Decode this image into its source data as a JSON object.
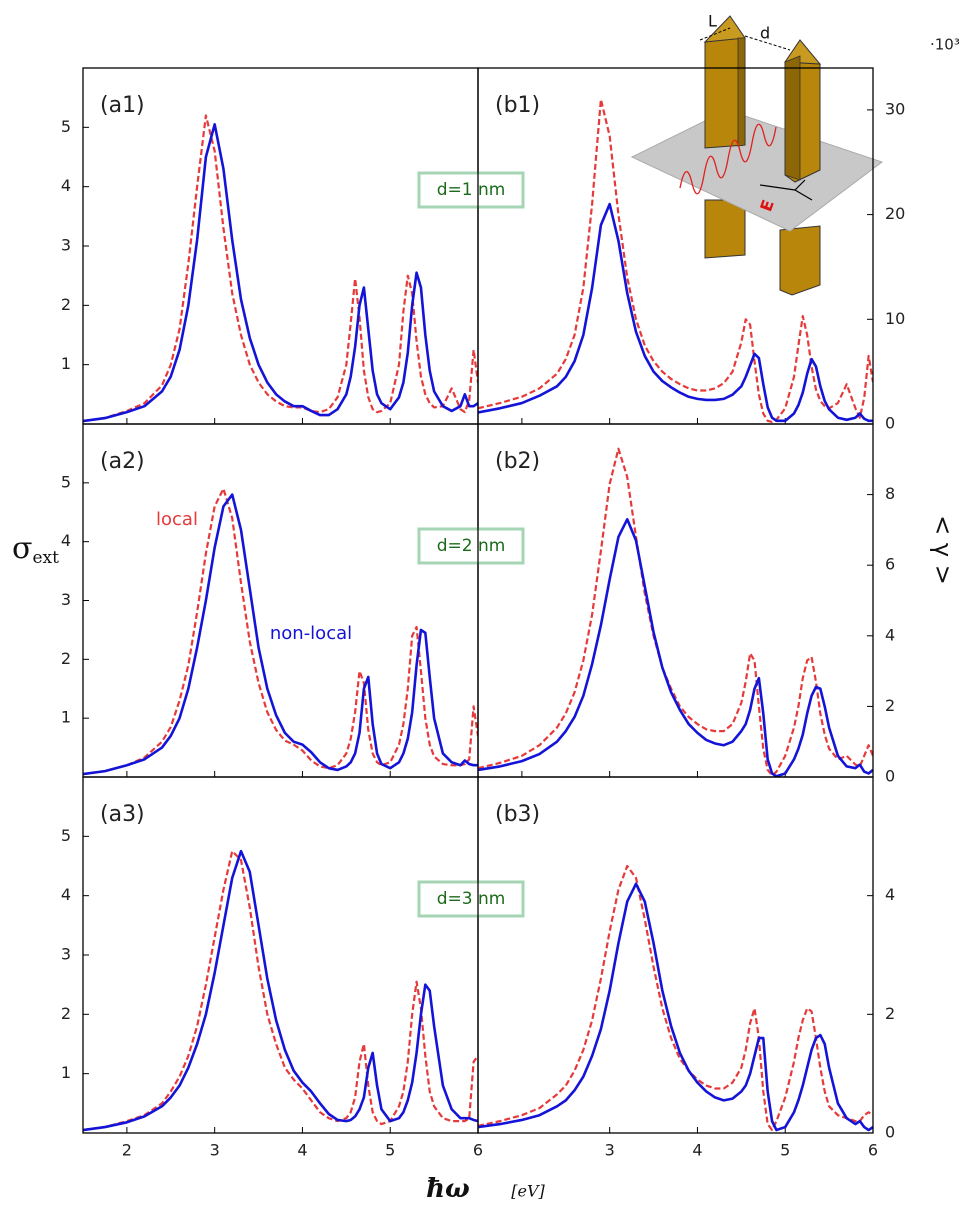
{
  "figure": {
    "xlabel": "ħω",
    "xunit": "[eV]",
    "ylabel": {
      "symbol": "σ",
      "subscript": "ext"
    },
    "y2label": "< γ >",
    "y2_multiplier": "·10³"
  },
  "inset": {
    "labels": [
      "L",
      "d",
      "E"
    ]
  },
  "chart_data": [
    {
      "type": "line",
      "panel_label": "(a1)",
      "annotation": "d=1 nm",
      "x": [
        1.5,
        1.75,
        2,
        2.2,
        2.4,
        2.5,
        2.6,
        2.7,
        2.8,
        2.9,
        3.0,
        3.1,
        3.2,
        3.3,
        3.4,
        3.5,
        3.6,
        3.7,
        3.8,
        3.9,
        4.0,
        4.1,
        4.2,
        4.3,
        4.4,
        4.5,
        4.55,
        4.6,
        4.65,
        4.7,
        4.75,
        4.8,
        4.85,
        4.9,
        5.0,
        5.1,
        5.15,
        5.2,
        5.25,
        5.3,
        5.35,
        5.4,
        5.45,
        5.5,
        5.6,
        5.7,
        5.8,
        5.85,
        5.9,
        5.95,
        6.0
      ],
      "xlim": [
        1.5,
        6
      ],
      "xticks": [
        2,
        3,
        4,
        5,
        6
      ],
      "ylim": [
        0,
        6
      ],
      "yticks": [
        1,
        2,
        3,
        4,
        5
      ],
      "series": [
        {
          "color": "#e63a3a",
          "dash": true,
          "values": [
            0.05,
            0.1,
            0.22,
            0.35,
            0.65,
            1.0,
            1.6,
            2.7,
            4.0,
            5.2,
            4.6,
            3.3,
            2.2,
            1.5,
            1.0,
            0.7,
            0.5,
            0.38,
            0.3,
            0.28,
            0.28,
            0.22,
            0.2,
            0.25,
            0.45,
            1.0,
            1.7,
            2.45,
            1.8,
            0.9,
            0.45,
            0.25,
            0.2,
            0.22,
            0.35,
            1.0,
            1.9,
            2.5,
            2.2,
            1.4,
            0.8,
            0.5,
            0.35,
            0.28,
            0.3,
            0.6,
            0.25,
            0.2,
            0.4,
            1.25,
            0.7
          ]
        },
        {
          "color": "#1414d8",
          "values": [
            0.05,
            0.1,
            0.2,
            0.3,
            0.55,
            0.8,
            1.25,
            2.0,
            3.1,
            4.5,
            5.05,
            4.3,
            3.1,
            2.1,
            1.45,
            1.0,
            0.7,
            0.5,
            0.38,
            0.3,
            0.3,
            0.22,
            0.15,
            0.15,
            0.25,
            0.5,
            0.8,
            1.3,
            2.0,
            2.3,
            1.6,
            0.9,
            0.5,
            0.35,
            0.25,
            0.45,
            0.7,
            1.2,
            2.0,
            2.55,
            2.3,
            1.5,
            0.9,
            0.55,
            0.3,
            0.22,
            0.3,
            0.5,
            0.3,
            0.3,
            0.35
          ]
        }
      ]
    },
    {
      "type": "line",
      "panel_label": "(b1)",
      "x": [
        1.5,
        1.75,
        2,
        2.2,
        2.4,
        2.5,
        2.6,
        2.7,
        2.8,
        2.9,
        3.0,
        3.1,
        3.2,
        3.3,
        3.4,
        3.5,
        3.6,
        3.7,
        3.8,
        3.9,
        4.0,
        4.1,
        4.2,
        4.3,
        4.4,
        4.5,
        4.55,
        4.6,
        4.65,
        4.7,
        4.75,
        4.8,
        4.85,
        4.9,
        5.0,
        5.1,
        5.15,
        5.2,
        5.25,
        5.3,
        5.35,
        5.4,
        5.45,
        5.5,
        5.6,
        5.7,
        5.8,
        5.85,
        5.9,
        5.95,
        6.0
      ],
      "xlim": [
        1.5,
        6
      ],
      "xticks": [
        2,
        3,
        4,
        5,
        6
      ],
      "y2lim": [
        0,
        34
      ],
      "y2ticks": [
        0,
        10,
        20,
        30
      ],
      "series": [
        {
          "color": "#e63a3a",
          "dash": true,
          "axis": "y2",
          "values": [
            1.5,
            2.0,
            2.6,
            3.4,
            4.8,
            6.2,
            8.5,
            13,
            21,
            31,
            27.5,
            20,
            14,
            10,
            7.5,
            6,
            5,
            4.3,
            3.8,
            3.4,
            3.2,
            3.2,
            3.4,
            3.9,
            5,
            7.8,
            10,
            9.5,
            6,
            2.8,
            1,
            0.3,
            0.2,
            0.4,
            1.5,
            4.5,
            7.5,
            10.3,
            8.5,
            5.5,
            3.3,
            2.2,
            1.7,
            1.5,
            2.0,
            3.8,
            1.5,
            0.6,
            2.5,
            6.5,
            4
          ]
        },
        {
          "color": "#1414d8",
          "axis": "y2",
          "values": [
            1.1,
            1.5,
            2.0,
            2.7,
            3.6,
            4.5,
            6,
            8.5,
            13,
            19,
            21,
            17.5,
            12.5,
            8.8,
            6.5,
            5.0,
            4.1,
            3.5,
            3.0,
            2.6,
            2.4,
            2.3,
            2.3,
            2.4,
            2.8,
            3.6,
            4.5,
            5.6,
            6.7,
            6.3,
            3.8,
            1.6,
            0.6,
            0.3,
            0.3,
            1.0,
            1.8,
            3.0,
            4.8,
            6.2,
            5.5,
            3.6,
            2.2,
            1.4,
            0.6,
            0.4,
            0.6,
            1.0,
            0.5,
            0.3,
            0.3
          ]
        }
      ]
    },
    {
      "type": "line",
      "panel_label": "(a2)",
      "annotation": "d=2 nm",
      "x": [
        1.5,
        1.75,
        2,
        2.2,
        2.4,
        2.5,
        2.6,
        2.7,
        2.8,
        2.9,
        3.0,
        3.1,
        3.2,
        3.3,
        3.4,
        3.5,
        3.6,
        3.7,
        3.8,
        3.9,
        4.0,
        4.1,
        4.2,
        4.3,
        4.4,
        4.5,
        4.55,
        4.6,
        4.65,
        4.7,
        4.75,
        4.8,
        4.85,
        4.9,
        5.0,
        5.1,
        5.15,
        5.2,
        5.25,
        5.3,
        5.35,
        5.4,
        5.45,
        5.5,
        5.6,
        5.7,
        5.8,
        5.85,
        5.9,
        5.95,
        6.0
      ],
      "xlim": [
        1.5,
        6
      ],
      "xticks": [
        2,
        3,
        4,
        5,
        6
      ],
      "ylim": [
        0,
        6
      ],
      "yticks": [
        1,
        2,
        3,
        4,
        5
      ],
      "series": [
        {
          "name": "local",
          "color": "#e63a3a",
          "dash": true,
          "values": [
            0.05,
            0.1,
            0.2,
            0.33,
            0.6,
            0.85,
            1.3,
            1.9,
            2.8,
            3.8,
            4.6,
            4.9,
            4.4,
            3.3,
            2.3,
            1.6,
            1.1,
            0.8,
            0.62,
            0.55,
            0.45,
            0.28,
            0.18,
            0.15,
            0.2,
            0.4,
            0.65,
            1.1,
            1.8,
            1.6,
            0.8,
            0.4,
            0.25,
            0.2,
            0.25,
            0.55,
            0.9,
            1.5,
            2.4,
            2.55,
            1.8,
            1.0,
            0.55,
            0.35,
            0.22,
            0.2,
            0.2,
            0.22,
            0.3,
            1.2,
            0.7
          ]
        },
        {
          "name": "non-local",
          "color": "#1414d8",
          "values": [
            0.05,
            0.1,
            0.2,
            0.3,
            0.5,
            0.7,
            1.0,
            1.5,
            2.2,
            3.0,
            3.9,
            4.6,
            4.8,
            4.2,
            3.2,
            2.2,
            1.5,
            1.05,
            0.75,
            0.6,
            0.55,
            0.42,
            0.25,
            0.15,
            0.12,
            0.18,
            0.25,
            0.4,
            0.75,
            1.5,
            1.7,
            0.9,
            0.4,
            0.22,
            0.15,
            0.25,
            0.4,
            0.65,
            1.1,
            1.9,
            2.5,
            2.45,
            1.7,
            1.0,
            0.4,
            0.25,
            0.2,
            0.28,
            0.22,
            0.2,
            0.2
          ]
        }
      ]
    },
    {
      "type": "line",
      "panel_label": "(b2)",
      "x": [
        1.5,
        1.75,
        2,
        2.2,
        2.4,
        2.5,
        2.6,
        2.7,
        2.8,
        2.9,
        3.0,
        3.1,
        3.2,
        3.3,
        3.4,
        3.5,
        3.6,
        3.7,
        3.8,
        3.9,
        4.0,
        4.1,
        4.2,
        4.3,
        4.4,
        4.5,
        4.55,
        4.6,
        4.65,
        4.7,
        4.75,
        4.8,
        4.85,
        4.9,
        5.0,
        5.1,
        5.15,
        5.2,
        5.25,
        5.3,
        5.35,
        5.4,
        5.45,
        5.5,
        5.6,
        5.7,
        5.8,
        5.85,
        5.9,
        5.95,
        6.0
      ],
      "xlim": [
        1.5,
        6
      ],
      "xticks": [
        2,
        3,
        4,
        5,
        6
      ],
      "y2lim": [
        0,
        10
      ],
      "y2ticks": [
        0,
        2,
        4,
        6,
        8
      ],
      "series": [
        {
          "color": "#e63a3a",
          "dash": true,
          "axis": "y2",
          "values": [
            0.25,
            0.4,
            0.6,
            0.9,
            1.4,
            1.8,
            2.4,
            3.3,
            4.6,
            6.4,
            8.3,
            9.3,
            8.5,
            6.8,
            5.2,
            4.0,
            3.1,
            2.5,
            2.0,
            1.7,
            1.5,
            1.35,
            1.3,
            1.3,
            1.5,
            2.1,
            2.7,
            3.5,
            3.3,
            2.0,
            0.8,
            0.2,
            0.05,
            0.15,
            0.6,
            1.4,
            2.0,
            2.8,
            3.3,
            3.4,
            2.7,
            1.8,
            1.2,
            0.8,
            0.5,
            0.6,
            0.35,
            0.3,
            0.6,
            0.9,
            0.6
          ]
        },
        {
          "color": "#1414d8",
          "axis": "y2",
          "values": [
            0.2,
            0.3,
            0.45,
            0.65,
            1.0,
            1.3,
            1.7,
            2.3,
            3.2,
            4.3,
            5.6,
            6.8,
            7.3,
            6.7,
            5.4,
            4.1,
            3.1,
            2.4,
            1.9,
            1.5,
            1.25,
            1.05,
            0.95,
            0.9,
            1.0,
            1.3,
            1.5,
            1.9,
            2.5,
            2.8,
            1.8,
            0.5,
            0.1,
            0.02,
            0.1,
            0.5,
            0.8,
            1.2,
            1.8,
            2.3,
            2.55,
            2.5,
            2.0,
            1.4,
            0.6,
            0.3,
            0.25,
            0.35,
            0.15,
            0.1,
            0.2
          ]
        }
      ]
    },
    {
      "type": "line",
      "panel_label": "(a3)",
      "annotation": "d=3 nm",
      "x": [
        1.5,
        1.75,
        2,
        2.2,
        2.4,
        2.5,
        2.6,
        2.7,
        2.8,
        2.9,
        3.0,
        3.1,
        3.2,
        3.3,
        3.4,
        3.5,
        3.6,
        3.7,
        3.8,
        3.9,
        4.0,
        4.1,
        4.2,
        4.3,
        4.4,
        4.5,
        4.55,
        4.6,
        4.65,
        4.7,
        4.75,
        4.8,
        4.85,
        4.9,
        5.0,
        5.1,
        5.15,
        5.2,
        5.25,
        5.3,
        5.35,
        5.4,
        5.45,
        5.5,
        5.6,
        5.7,
        5.8,
        5.85,
        5.9,
        5.95,
        6.0
      ],
      "xlim": [
        1.5,
        6
      ],
      "xticks": [
        2,
        3,
        4,
        5,
        6
      ],
      "ylim": [
        0,
        6
      ],
      "yticks": [
        1,
        2,
        3,
        4,
        5
      ],
      "series": [
        {
          "color": "#e63a3a",
          "dash": true,
          "values": [
            0.05,
            0.1,
            0.2,
            0.3,
            0.5,
            0.7,
            0.95,
            1.3,
            1.8,
            2.5,
            3.3,
            4.1,
            4.75,
            4.6,
            3.8,
            2.8,
            2.0,
            1.5,
            1.1,
            0.9,
            0.75,
            0.55,
            0.35,
            0.25,
            0.2,
            0.25,
            0.35,
            0.6,
            1.2,
            1.5,
            0.8,
            0.35,
            0.2,
            0.15,
            0.2,
            0.45,
            0.7,
            1.2,
            2.0,
            2.55,
            2.1,
            1.3,
            0.7,
            0.45,
            0.25,
            0.2,
            0.2,
            0.2,
            0.25,
            1.2,
            1.3
          ]
        },
        {
          "color": "#1414d8",
          "values": [
            0.05,
            0.1,
            0.18,
            0.28,
            0.45,
            0.6,
            0.8,
            1.1,
            1.5,
            2.0,
            2.7,
            3.5,
            4.3,
            4.75,
            4.4,
            3.5,
            2.6,
            1.9,
            1.4,
            1.05,
            0.85,
            0.7,
            0.5,
            0.32,
            0.22,
            0.2,
            0.22,
            0.28,
            0.4,
            0.6,
            1.1,
            1.35,
            0.8,
            0.4,
            0.2,
            0.25,
            0.35,
            0.55,
            0.85,
            1.35,
            2.0,
            2.5,
            2.4,
            1.8,
            0.8,
            0.4,
            0.25,
            0.25,
            0.25,
            0.22,
            0.2
          ]
        }
      ]
    },
    {
      "type": "line",
      "panel_label": "(b3)",
      "x": [
        1.5,
        1.75,
        2,
        2.2,
        2.4,
        2.5,
        2.6,
        2.7,
        2.8,
        2.9,
        3.0,
        3.1,
        3.2,
        3.3,
        3.4,
        3.5,
        3.6,
        3.7,
        3.8,
        3.9,
        4.0,
        4.1,
        4.2,
        4.3,
        4.4,
        4.5,
        4.55,
        4.6,
        4.65,
        4.7,
        4.75,
        4.8,
        4.85,
        4.9,
        5.0,
        5.1,
        5.15,
        5.2,
        5.25,
        5.3,
        5.35,
        5.4,
        5.45,
        5.5,
        5.6,
        5.7,
        5.8,
        5.85,
        5.9,
        5.95,
        6.0
      ],
      "xlim": [
        1.5,
        6
      ],
      "xticks": [
        3,
        4,
        5,
        6
      ],
      "y2lim": [
        0,
        6
      ],
      "y2ticks": [
        0,
        2,
        4
      ],
      "series": [
        {
          "color": "#e63a3a",
          "dash": true,
          "axis": "y2",
          "values": [
            0.12,
            0.2,
            0.3,
            0.42,
            0.65,
            0.8,
            1.05,
            1.4,
            1.9,
            2.6,
            3.4,
            4.1,
            4.5,
            4.3,
            3.6,
            2.8,
            2.1,
            1.6,
            1.25,
            1.05,
            0.9,
            0.8,
            0.75,
            0.75,
            0.85,
            1.1,
            1.4,
            1.85,
            2.1,
            1.6,
            0.7,
            0.15,
            0.05,
            0.2,
            0.6,
            1.2,
            1.6,
            1.9,
            2.1,
            2.05,
            1.6,
            1.1,
            0.7,
            0.45,
            0.3,
            0.25,
            0.2,
            0.2,
            0.3,
            0.35,
            0.3
          ]
        },
        {
          "color": "#1414d8",
          "axis": "y2",
          "values": [
            0.1,
            0.15,
            0.22,
            0.3,
            0.45,
            0.55,
            0.72,
            0.95,
            1.3,
            1.75,
            2.4,
            3.2,
            3.9,
            4.2,
            3.9,
            3.2,
            2.4,
            1.8,
            1.35,
            1.05,
            0.85,
            0.7,
            0.6,
            0.55,
            0.58,
            0.7,
            0.8,
            1.0,
            1.3,
            1.6,
            1.6,
            0.7,
            0.2,
            0.05,
            0.1,
            0.35,
            0.55,
            0.8,
            1.1,
            1.4,
            1.6,
            1.65,
            1.5,
            1.1,
            0.5,
            0.25,
            0.15,
            0.2,
            0.1,
            0.05,
            0.1
          ]
        }
      ]
    }
  ]
}
